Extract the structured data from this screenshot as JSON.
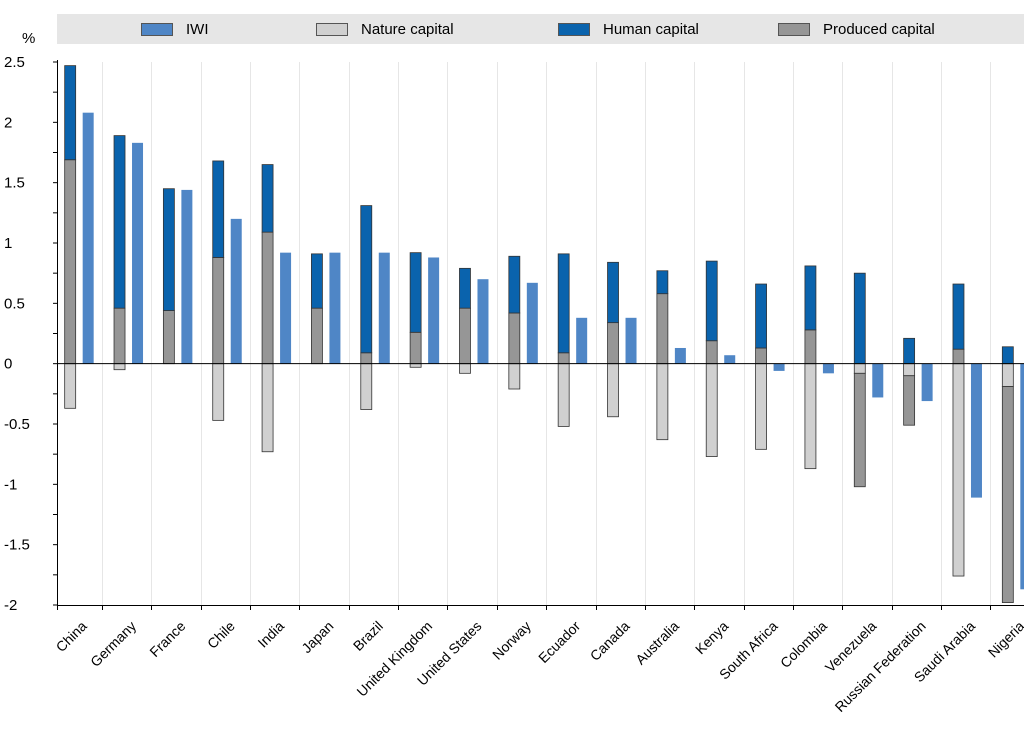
{
  "unit_label": "%",
  "legend": [
    {
      "label": "IWI",
      "color": "#4f86c6"
    },
    {
      "label": "Nature capital",
      "color": "#d0d0d0"
    },
    {
      "label": "Human capital",
      "color": "#0a63ad"
    },
    {
      "label": "Produced capital",
      "color": "#969696"
    }
  ],
  "chart_data": {
    "type": "bar",
    "stacked_components": [
      "Nature capital",
      "Produced capital",
      "Human capital"
    ],
    "categories": [
      "China",
      "Germany",
      "France",
      "Chile",
      "India",
      "Japan",
      "Brazil",
      "United Kingdom",
      "United States",
      "Norway",
      "Ecuador",
      "Canada",
      "Australia",
      "Kenya",
      "South Africa",
      "Colombia",
      "Venezuela",
      "Russian Federation",
      "Saudi Arabia",
      "Nigeria"
    ],
    "series": [
      {
        "name": "Nature capital",
        "values": [
          -0.37,
          -0.05,
          0,
          -0.47,
          -0.73,
          0,
          -0.38,
          -0.03,
          -0.08,
          -0.21,
          -0.52,
          -0.44,
          -0.63,
          -0.77,
          -0.71,
          -0.87,
          -0.08,
          -0.1,
          -1.76,
          -0.19
        ]
      },
      {
        "name": "Produced capital",
        "values": [
          1.69,
          0.46,
          0.44,
          0.88,
          1.09,
          0.46,
          0.09,
          0.26,
          0.46,
          0.42,
          0.09,
          0.34,
          0.58,
          0.19,
          0.13,
          0.28,
          -0.94,
          -0.41,
          0.12,
          -1.79
        ]
      },
      {
        "name": "Human capital",
        "values": [
          0.78,
          1.43,
          1.01,
          0.8,
          0.56,
          0.45,
          1.22,
          0.66,
          0.33,
          0.47,
          0.82,
          0.5,
          0.19,
          0.66,
          0.53,
          0.53,
          0.75,
          0.21,
          0.54,
          0.14
        ]
      },
      {
        "name": "IWI",
        "values": [
          2.08,
          1.83,
          1.44,
          1.2,
          0.92,
          0.92,
          0.92,
          0.88,
          0.7,
          0.67,
          0.38,
          0.38,
          0.13,
          0.07,
          -0.06,
          -0.08,
          -0.28,
          -0.31,
          -1.11,
          -1.87
        ]
      }
    ],
    "ylim": [
      -2,
      2.5
    ],
    "yticks": [
      "2.5",
      "2",
      "1.5",
      "1",
      "0.5",
      "0",
      "-0.5",
      "-1",
      "-1.5",
      "-2"
    ],
    "ytick_values": [
      2.5,
      2,
      1.5,
      1,
      0.5,
      0,
      -0.5,
      -1,
      -1.5,
      -2
    ],
    "grid": "vertical category separators",
    "legend_position": "top"
  }
}
